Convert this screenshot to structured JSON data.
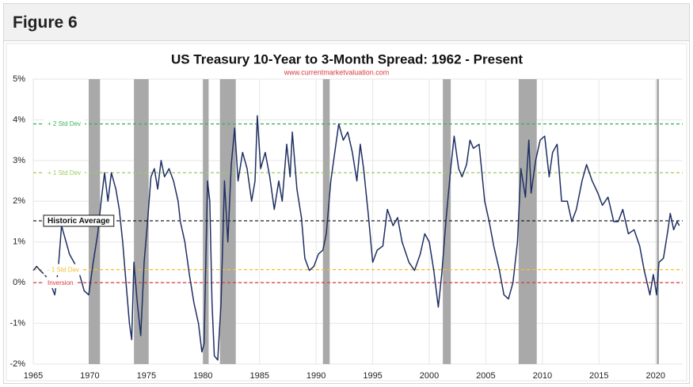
{
  "figure_label": "Figure 6",
  "chart_data": {
    "type": "line",
    "title": "US Treasury 10-Year to 3-Month Spread: 1962 - Present",
    "subtitle": "www.currentmarketvaluation.com",
    "xlim": [
      1965,
      2022.4
    ],
    "xticks": [
      1965,
      1970,
      1975,
      1980,
      1985,
      1990,
      1995,
      2000,
      2005,
      2010,
      2015,
      2020
    ],
    "ylim": [
      -2,
      5
    ],
    "yticks": [
      {
        "value": -2,
        "label": "-2%"
      },
      {
        "value": -1,
        "label": "-1%"
      },
      {
        "value": 0,
        "label": "0%"
      },
      {
        "value": 1,
        "label": "1%"
      },
      {
        "value": 2,
        "label": "2%"
      },
      {
        "value": 3,
        "label": "3%"
      },
      {
        "value": 4,
        "label": "4%"
      },
      {
        "value": 5,
        "label": "5%"
      }
    ],
    "grid": true,
    "recession_color": "#a9a9a9",
    "recessions": [
      [
        1969.9,
        1970.9
      ],
      [
        1973.9,
        1975.2
      ],
      [
        1980.0,
        1980.5
      ],
      [
        1981.5,
        1982.9
      ],
      [
        1990.6,
        1991.2
      ],
      [
        2001.2,
        2001.9
      ],
      [
        2007.9,
        2009.5
      ],
      [
        2020.1,
        2020.3
      ]
    ],
    "reference_lines": [
      {
        "label": "+ 2 Std Dev",
        "value": 3.9,
        "color": "#3cb55a"
      },
      {
        "label": "+ 1 Std Dev",
        "value": 2.7,
        "color": "#9ccc5a"
      },
      {
        "label": "Historic Average",
        "value": 1.52,
        "color": "#222222"
      },
      {
        "label": "- 1 Std Dev",
        "value": 0.32,
        "color": "#f2c12e"
      },
      {
        "label": "Inversion",
        "value": 0,
        "color": "#d9373c"
      }
    ],
    "series": [
      {
        "name": "10Y-3M Spread",
        "color": "#1f2f63",
        "x": [
          1965.0,
          1965.3,
          1965.6,
          1966.0,
          1966.5,
          1966.9,
          1967.2,
          1967.5,
          1967.8,
          1968.2,
          1968.6,
          1969.0,
          1969.5,
          1969.9,
          1970.3,
          1970.7,
          1971.0,
          1971.3,
          1971.6,
          1971.9,
          1972.3,
          1972.6,
          1972.9,
          1973.2,
          1973.5,
          1973.7,
          1973.9,
          1974.2,
          1974.5,
          1974.8,
          1975.1,
          1975.4,
          1975.7,
          1976.0,
          1976.3,
          1976.6,
          1977.0,
          1977.4,
          1977.8,
          1978.0,
          1978.4,
          1978.8,
          1979.2,
          1979.6,
          1979.9,
          1980.1,
          1980.4,
          1980.6,
          1980.8,
          1981.0,
          1981.3,
          1981.6,
          1981.9,
          1982.2,
          1982.5,
          1982.8,
          1983.1,
          1983.5,
          1983.9,
          1984.3,
          1984.6,
          1984.8,
          1985.1,
          1985.5,
          1985.9,
          1986.3,
          1986.7,
          1987.0,
          1987.4,
          1987.7,
          1987.9,
          1988.3,
          1988.7,
          1989.0,
          1989.4,
          1989.8,
          1990.2,
          1990.6,
          1990.9,
          1991.3,
          1991.7,
          1992.0,
          1992.4,
          1992.8,
          1993.2,
          1993.6,
          1993.9,
          1994.2,
          1994.6,
          1995.0,
          1995.4,
          1995.9,
          1996.3,
          1996.8,
          1997.2,
          1997.6,
          1998.2,
          1998.7,
          1999.2,
          1999.6,
          2000.0,
          2000.4,
          2000.8,
          2001.1,
          2001.5,
          2001.9,
          2002.2,
          2002.6,
          2002.9,
          2003.3,
          2003.6,
          2003.9,
          2004.4,
          2004.9,
          2005.3,
          2005.7,
          2006.2,
          2006.6,
          2007.0,
          2007.4,
          2007.8,
          2008.1,
          2008.5,
          2008.8,
          2009.0,
          2009.4,
          2009.8,
          2010.2,
          2010.6,
          2010.9,
          2011.3,
          2011.7,
          2012.2,
          2012.6,
          2013.0,
          2013.5,
          2013.9,
          2014.4,
          2014.9,
          2015.3,
          2015.8,
          2016.3,
          2016.7,
          2017.1,
          2017.6,
          2018.1,
          2018.6,
          2019.0,
          2019.5,
          2019.8,
          2020.1,
          2020.3,
          2020.7,
          2021.1,
          2021.3,
          2021.6,
          2021.9,
          2022.1
        ],
        "values": [
          0.3,
          0.4,
          0.3,
          0.2,
          0.0,
          -0.3,
          0.3,
          1.4,
          1.1,
          0.7,
          0.5,
          0.3,
          -0.2,
          -0.3,
          0.5,
          1.2,
          2.0,
          2.7,
          2.0,
          2.7,
          2.3,
          1.8,
          1.0,
          0.0,
          -1.0,
          -1.4,
          0.5,
          -0.5,
          -1.3,
          0.5,
          1.5,
          2.6,
          2.8,
          2.3,
          3.0,
          2.6,
          2.8,
          2.5,
          2.0,
          1.5,
          1.0,
          0.2,
          -0.5,
          -1.0,
          -1.7,
          -1.5,
          2.5,
          2.0,
          -0.5,
          -1.8,
          -1.9,
          -0.5,
          2.5,
          1.0,
          2.9,
          3.8,
          2.5,
          3.2,
          2.8,
          2.0,
          2.5,
          4.1,
          2.8,
          3.2,
          2.6,
          1.8,
          2.5,
          2.0,
          3.4,
          2.6,
          3.7,
          2.3,
          1.6,
          0.6,
          0.3,
          0.4,
          0.7,
          0.8,
          1.2,
          2.5,
          3.3,
          3.9,
          3.5,
          3.7,
          3.2,
          2.5,
          3.4,
          2.8,
          1.7,
          0.5,
          0.8,
          0.9,
          1.8,
          1.4,
          1.6,
          1.0,
          0.5,
          0.3,
          0.7,
          1.2,
          1.0,
          0.3,
          -0.6,
          0.2,
          1.6,
          2.8,
          3.6,
          2.8,
          2.6,
          2.9,
          3.5,
          3.3,
          3.4,
          2.0,
          1.5,
          0.9,
          0.3,
          -0.3,
          -0.4,
          0.0,
          1.0,
          2.8,
          2.1,
          3.5,
          2.2,
          3.0,
          3.5,
          3.6,
          2.6,
          3.2,
          3.4,
          2.0,
          2.0,
          1.5,
          1.8,
          2.5,
          2.9,
          2.5,
          2.2,
          1.9,
          2.1,
          1.5,
          1.5,
          1.8,
          1.2,
          1.3,
          0.9,
          0.3,
          -0.3,
          0.2,
          -0.3,
          0.5,
          0.6,
          1.3,
          1.7,
          1.3,
          1.5,
          1.4
        ]
      }
    ]
  }
}
